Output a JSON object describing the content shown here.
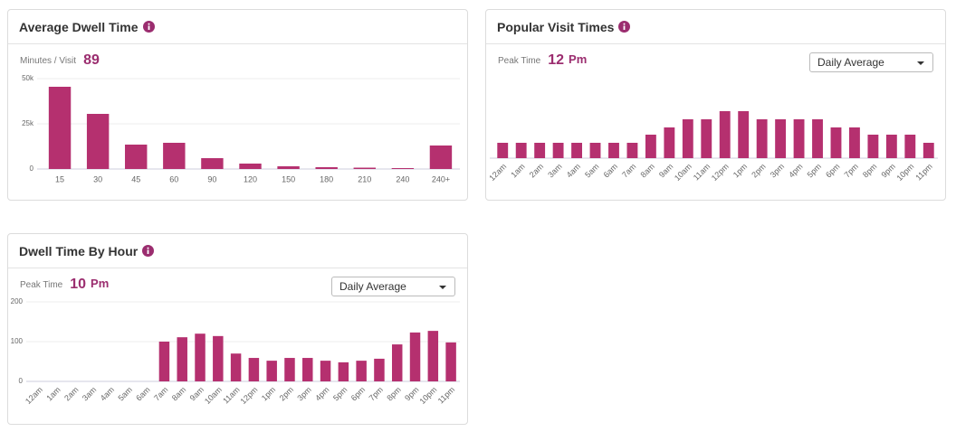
{
  "cards": [
    {
      "title": "Average Dwell Time",
      "stat_label": "Minutes / Visit",
      "stat_value": 89,
      "chart": {
        "type": "bar",
        "color": "#b5306f",
        "grid": true,
        "categories": [
          "15",
          "30",
          "45",
          "60",
          "90",
          "120",
          "150",
          "180",
          "210",
          "240",
          "240+"
        ],
        "values": [
          45500,
          30500,
          13500,
          14500,
          6000,
          3000,
          1500,
          1000,
          750,
          500,
          13000
        ],
        "ylim": [
          0,
          50000
        ],
        "yticks": [
          0,
          {
            "value": 25000,
            "label": "25k"
          },
          {
            "value": 50000,
            "label": "50k"
          }
        ]
      }
    },
    {
      "title": "Popular Visit Times",
      "stat_label": "Peak Time",
      "stat_value": 12,
      "stat_unit": "Pm",
      "dropdown": "Daily Average",
      "chart": {
        "type": "bar",
        "color": "#b5306f",
        "grid": false,
        "categories": [
          "12am",
          "1am",
          "2am",
          "3am",
          "4am",
          "5am",
          "6am",
          "7am",
          "8am",
          "9am",
          "10am",
          "11am",
          "12pm",
          "1pm",
          "2pm",
          "3pm",
          "4pm",
          "5pm",
          "6pm",
          "7pm",
          "8pm",
          "9pm",
          "10pm",
          "11pm"
        ],
        "values": [
          17,
          17,
          17,
          17,
          17,
          17,
          17,
          17,
          26,
          34,
          43,
          43,
          52,
          52,
          43,
          43,
          43,
          43,
          34,
          34,
          26,
          26,
          26,
          17
        ],
        "ylim": [
          0,
          60
        ]
      }
    },
    {
      "title": "Dwell Time By Hour",
      "stat_label": "Peak Time",
      "stat_value": 10,
      "stat_unit": "Pm",
      "dropdown": "Daily Average",
      "chart": {
        "type": "bar",
        "color": "#b5306f",
        "grid": true,
        "categories": [
          "12am",
          "1am",
          "2am",
          "3am",
          "4am",
          "5am",
          "6am",
          "7am",
          "8am",
          "9am",
          "10am",
          "11am",
          "12pm",
          "1pm",
          "2pm",
          "3pm",
          "4pm",
          "5pm",
          "6pm",
          "7pm",
          "8pm",
          "9pm",
          "10pm",
          "11pm"
        ],
        "values": [
          0,
          0,
          0,
          0,
          0,
          0,
          0,
          100,
          111,
          120,
          114,
          70,
          59,
          52,
          59,
          59,
          52,
          48,
          52,
          57,
          93,
          123,
          127,
          98
        ],
        "ylim": [
          0,
          200
        ],
        "yticks": [
          0,
          100,
          200
        ]
      }
    }
  ]
}
